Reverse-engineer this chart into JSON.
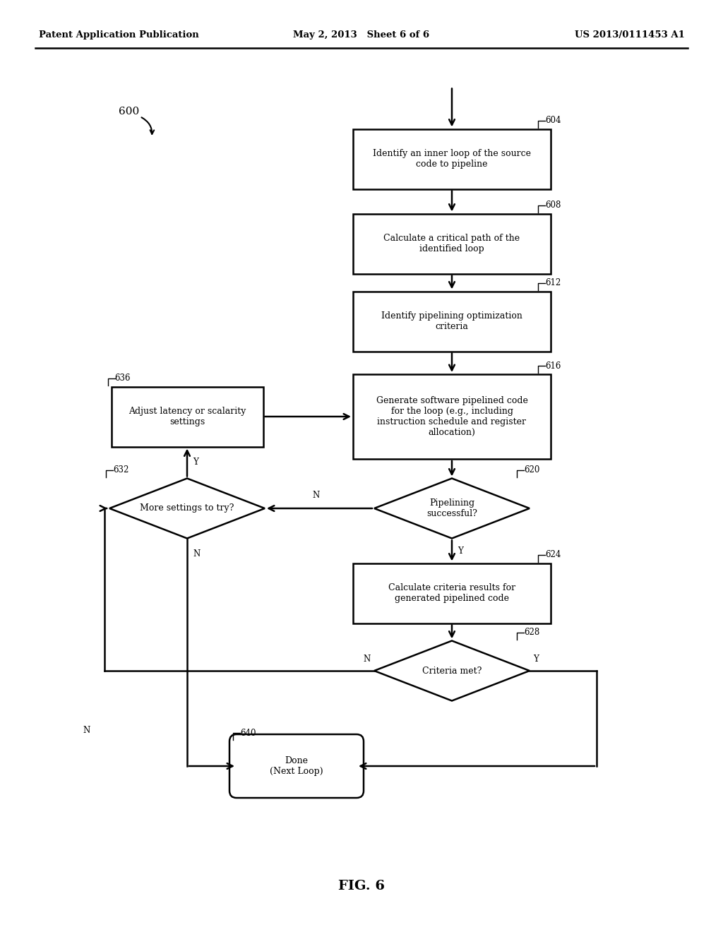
{
  "background_color": "#ffffff",
  "header_left": "Patent Application Publication",
  "header_mid": "May 2, 2013   Sheet 6 of 6",
  "header_right": "US 2013/0111453 A1",
  "fig_label": "FIG. 6",
  "diagram_number": "600",
  "node_604": "Identify an inner loop of the source\ncode to pipeline",
  "node_608": "Calculate a critical path of the\nidentified loop",
  "node_612": "Identify pipelining optimization\ncriteria",
  "node_616": "Generate software pipelined code\nfor the loop (e.g., including\ninstruction schedule and register\nallocation)",
  "node_636": "Adjust latency or scalarity\nsettings",
  "node_620": "Pipelining\nsuccessful?",
  "node_632": "More settings to try?",
  "node_624": "Calculate criteria results for\ngenerated pipelined code",
  "node_628": "Criteria met?",
  "node_640": "Done\n(Next Loop)",
  "ref_604": "604",
  "ref_608": "608",
  "ref_612": "612",
  "ref_616": "616",
  "ref_636": "636",
  "ref_620": "620",
  "ref_632": "632",
  "ref_624": "624",
  "ref_628": "628",
  "ref_640": "640"
}
